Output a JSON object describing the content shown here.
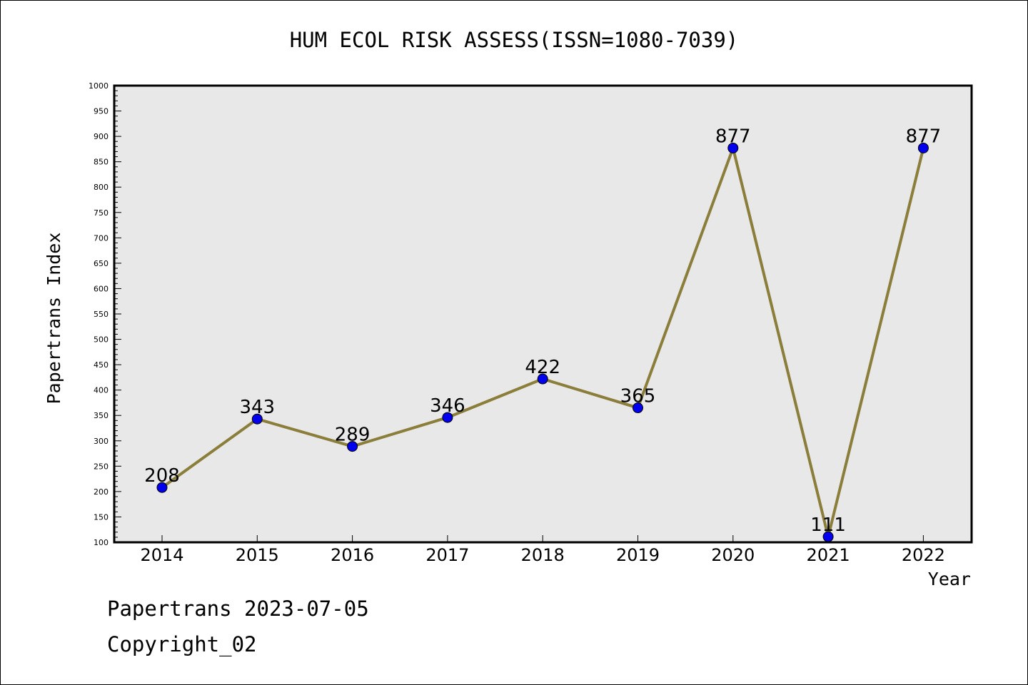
{
  "chart_data": {
    "type": "line",
    "title": "HUM ECOL RISK ASSESS(ISSN=1080-7039)",
    "xlabel": "Year",
    "ylabel": "Papertrans Index",
    "x": [
      "2014",
      "2015",
      "2016",
      "2017",
      "2018",
      "2019",
      "2020",
      "2021",
      "2022"
    ],
    "values": [
      208,
      343,
      289,
      346,
      422,
      365,
      877,
      111,
      877
    ],
    "labels": [
      "208",
      "343",
      "289",
      "346",
      "422",
      "365",
      "877",
      "111",
      "877"
    ],
    "ylim": [
      100,
      1000
    ],
    "yticks": [
      "100",
      "150",
      "200",
      "250",
      "300",
      "350",
      "400",
      "450",
      "500",
      "550",
      "600",
      "650",
      "700",
      "750",
      "800",
      "850",
      "900",
      "950",
      "1000"
    ],
    "grid": false,
    "colors": {
      "line": "#8b7d3a",
      "marker": "#0000ee",
      "plot_bg": "#e8e8e8"
    }
  },
  "footer": {
    "line1": "Papertrans 2023-07-05",
    "line2": "Copyright_02"
  }
}
